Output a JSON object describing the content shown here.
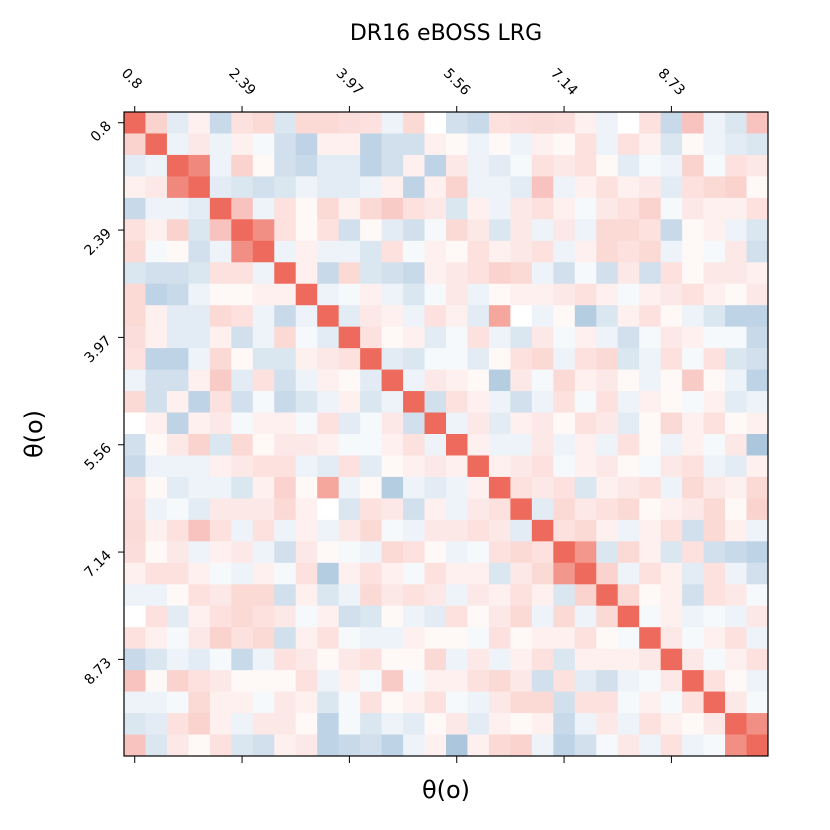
{
  "chart_data": {
    "type": "heatmap",
    "title": "DR16 eBOSS LRG",
    "xlabel": "θ(o)",
    "ylabel": "θ(o)",
    "tick_values": [
      0.8,
      2.39,
      3.97,
      5.56,
      7.14,
      8.73
    ],
    "tick_labels": [
      "0.8",
      "2.39",
      "3.97",
      "5.56",
      "7.14",
      "8.73"
    ],
    "n_bins": 30,
    "tick_bin_indices": [
      0,
      5,
      10,
      15,
      20,
      25
    ],
    "value_range": [
      -1,
      1
    ],
    "colormap": {
      "negative": "#4682b4",
      "zero": "#ffffff",
      "positive": "#ee6a5c"
    },
    "matrix_note": "symmetric correlation matrix with unit diagonal",
    "matrix": [
      [
        1.0,
        0.3,
        -0.15,
        0.1,
        -0.3,
        0.2,
        0.25,
        -0.2,
        0.25,
        0.25,
        0.22,
        0.2,
        -0.1,
        0.25,
        0.0,
        -0.25,
        -0.3,
        0.2,
        0.22,
        0.24,
        0.22,
        0.1,
        -0.1,
        0.0,
        0.2,
        -0.3,
        0.4,
        -0.1,
        -0.2,
        0.4
      ],
      [
        0.3,
        1.0,
        -0.1,
        0.15,
        -0.1,
        0.1,
        -0.05,
        -0.25,
        -0.35,
        0.1,
        0.1,
        -0.35,
        -0.25,
        -0.25,
        0.1,
        0.05,
        -0.1,
        0.05,
        -0.1,
        0.1,
        0.05,
        0.2,
        -0.1,
        0.2,
        0.1,
        -0.2,
        0.05,
        -0.1,
        -0.15,
        -0.2
      ],
      [
        -0.15,
        -0.1,
        1.0,
        0.8,
        -0.1,
        0.3,
        0.05,
        -0.25,
        -0.3,
        -0.15,
        -0.15,
        -0.35,
        -0.25,
        0.1,
        -0.35,
        0.15,
        -0.1,
        -0.15,
        -0.05,
        0.2,
        0.15,
        0.2,
        0.05,
        -0.15,
        -0.05,
        -0.1,
        0.3,
        -0.05,
        0.2,
        0.15
      ],
      [
        0.1,
        0.15,
        0.8,
        1.0,
        -0.15,
        -0.2,
        -0.25,
        -0.2,
        -0.1,
        -0.15,
        -0.15,
        -0.1,
        0.1,
        -0.35,
        0.1,
        0.3,
        -0.1,
        -0.1,
        -0.15,
        0.4,
        -0.1,
        0.1,
        0.2,
        0.1,
        0.15,
        -0.15,
        0.2,
        0.25,
        0.3,
        0.05
      ],
      [
        -0.3,
        -0.1,
        -0.1,
        -0.15,
        1.0,
        0.4,
        -0.1,
        0.2,
        0.05,
        0.25,
        0.1,
        0.25,
        0.35,
        0.2,
        0.15,
        -0.2,
        0.1,
        -0.1,
        0.15,
        0.2,
        0.1,
        -0.05,
        0.15,
        0.2,
        0.3,
        -0.05,
        0.15,
        0.1,
        0.1,
        0.2
      ],
      [
        0.2,
        0.1,
        0.3,
        -0.2,
        0.4,
        1.0,
        0.75,
        0.2,
        0.05,
        0.2,
        -0.25,
        0.05,
        -0.15,
        -0.25,
        -0.05,
        0.25,
        0.15,
        -0.2,
        0.15,
        -0.1,
        0.15,
        -0.1,
        0.25,
        0.25,
        0.2,
        -0.3,
        0.05,
        0.1,
        -0.1,
        -0.2
      ],
      [
        0.25,
        -0.05,
        0.05,
        -0.25,
        -0.1,
        0.75,
        1.0,
        -0.1,
        0.1,
        -0.1,
        -0.1,
        -0.2,
        0.2,
        -0.05,
        0.1,
        0.05,
        0.2,
        0.1,
        0.15,
        0.2,
        -0.1,
        0.1,
        0.25,
        0.2,
        0.25,
        -0.1,
        0.05,
        -0.05,
        0.15,
        -0.25
      ],
      [
        -0.2,
        -0.25,
        -0.25,
        -0.2,
        0.2,
        0.2,
        -0.1,
        1.0,
        0.1,
        -0.3,
        0.25,
        -0.2,
        -0.25,
        -0.3,
        0.1,
        0.15,
        0.2,
        0.3,
        0.25,
        -0.1,
        -0.25,
        -0.05,
        -0.25,
        0.15,
        -0.25,
        0.2,
        0.05,
        0.15,
        0.15,
        0.1
      ],
      [
        0.25,
        -0.35,
        -0.3,
        -0.1,
        0.05,
        0.05,
        0.1,
        0.1,
        1.0,
        -0.1,
        -0.05,
        0.1,
        -0.1,
        -0.2,
        -0.05,
        0.15,
        -0.1,
        0.05,
        0.1,
        0.1,
        0.15,
        0.2,
        0.1,
        -0.05,
        0.1,
        0.15,
        0.2,
        0.1,
        0.05,
        0.15
      ],
      [
        0.25,
        0.1,
        -0.15,
        -0.15,
        0.25,
        0.2,
        -0.1,
        -0.3,
        -0.1,
        1.0,
        -0.15,
        0.15,
        0.1,
        -0.1,
        0.2,
        0.1,
        -0.15,
        0.6,
        0.0,
        -0.1,
        0.05,
        -0.4,
        -0.2,
        0.1,
        0.2,
        0.05,
        -0.1,
        -0.2,
        -0.35,
        -0.35
      ],
      [
        0.22,
        0.1,
        -0.15,
        -0.15,
        0.1,
        -0.25,
        -0.1,
        0.25,
        -0.05,
        -0.15,
        1.0,
        0.2,
        0.05,
        0.1,
        -0.15,
        -0.05,
        0.2,
        -0.1,
        -0.2,
        0.15,
        -0.05,
        0.1,
        -0.1,
        -0.25,
        -0.05,
        0.15,
        0.1,
        -0.05,
        -0.05,
        -0.3
      ],
      [
        0.2,
        -0.35,
        -0.35,
        -0.1,
        0.25,
        0.05,
        -0.2,
        -0.2,
        0.1,
        0.15,
        0.2,
        1.0,
        -0.15,
        -0.2,
        -0.05,
        -0.05,
        -0.15,
        0.05,
        0.2,
        0.25,
        -0.1,
        0.2,
        0.25,
        -0.2,
        -0.1,
        0.2,
        -0.05,
        0.2,
        -0.2,
        -0.25
      ],
      [
        -0.1,
        -0.25,
        -0.25,
        0.1,
        0.35,
        -0.15,
        0.2,
        -0.25,
        -0.1,
        0.1,
        0.05,
        -0.15,
        1.0,
        -0.1,
        0.15,
        0.1,
        0.05,
        -0.4,
        0.15,
        -0.05,
        0.25,
        0.1,
        0.15,
        0.05,
        -0.1,
        0.05,
        0.35,
        0.05,
        -0.1,
        -0.35
      ],
      [
        0.25,
        -0.25,
        0.1,
        -0.35,
        0.2,
        -0.25,
        -0.05,
        -0.3,
        -0.2,
        -0.1,
        0.1,
        -0.2,
        -0.1,
        1.0,
        -0.25,
        0.2,
        0.1,
        -0.1,
        -0.25,
        -0.1,
        0.2,
        -0.05,
        0.2,
        -0.1,
        0.1,
        0.05,
        -0.05,
        0.1,
        -0.15,
        -0.1
      ],
      [
        0.0,
        0.1,
        -0.35,
        0.1,
        0.15,
        -0.05,
        0.1,
        0.1,
        -0.05,
        0.2,
        -0.15,
        -0.05,
        0.15,
        -0.25,
        1.0,
        -0.1,
        0.15,
        -0.15,
        0.1,
        0.15,
        0.05,
        0.2,
        0.15,
        -0.15,
        0.05,
        0.25,
        0.1,
        0.2,
        0.05,
        0.1
      ],
      [
        -0.25,
        0.05,
        0.15,
        0.3,
        -0.2,
        0.25,
        0.05,
        0.15,
        0.15,
        0.1,
        -0.05,
        -0.05,
        0.1,
        0.2,
        -0.1,
        1.0,
        0.1,
        -0.1,
        -0.1,
        0.15,
        -0.1,
        0.1,
        -0.1,
        0.2,
        0.05,
        -0.1,
        0.1,
        -0.05,
        0.15,
        -0.45
      ],
      [
        -0.3,
        -0.1,
        -0.1,
        -0.1,
        0.1,
        0.15,
        0.2,
        0.2,
        -0.1,
        -0.15,
        0.2,
        -0.15,
        0.05,
        0.1,
        0.15,
        0.1,
        1.0,
        0.1,
        0.15,
        0.2,
        -0.05,
        0.1,
        0.15,
        0.05,
        -0.05,
        0.15,
        0.2,
        -0.1,
        -0.15,
        0.1
      ],
      [
        0.2,
        0.05,
        -0.15,
        -0.1,
        -0.1,
        -0.2,
        0.1,
        0.3,
        0.05,
        0.6,
        -0.1,
        0.05,
        -0.4,
        -0.1,
        -0.15,
        -0.1,
        0.1,
        1.0,
        0.2,
        0.15,
        0.2,
        -0.2,
        0.1,
        0.15,
        0.2,
        -0.1,
        0.25,
        0.15,
        0.1,
        0.25
      ],
      [
        0.22,
        -0.1,
        -0.05,
        -0.15,
        0.15,
        0.15,
        0.15,
        0.25,
        0.1,
        0.0,
        -0.2,
        0.2,
        0.15,
        -0.25,
        0.1,
        -0.1,
        0.15,
        0.2,
        1.0,
        -0.15,
        0.25,
        0.15,
        0.2,
        0.25,
        0.05,
        0.1,
        0.15,
        0.25,
        0.05,
        0.3
      ],
      [
        0.24,
        0.1,
        0.2,
        0.4,
        0.2,
        -0.1,
        0.2,
        -0.1,
        0.1,
        -0.1,
        0.15,
        0.25,
        -0.05,
        -0.1,
        0.15,
        0.15,
        0.2,
        0.15,
        -0.15,
        1.0,
        0.2,
        0.25,
        0.1,
        -0.1,
        0.1,
        0.2,
        -0.25,
        0.25,
        0.1,
        -0.1
      ],
      [
        0.22,
        0.05,
        0.15,
        -0.1,
        0.1,
        0.15,
        -0.1,
        -0.25,
        0.15,
        0.05,
        -0.05,
        -0.1,
        0.25,
        0.2,
        0.05,
        -0.1,
        -0.05,
        0.2,
        0.25,
        0.2,
        1.0,
        0.7,
        -0.2,
        0.25,
        0.1,
        -0.2,
        0.2,
        -0.25,
        -0.3,
        -0.35
      ],
      [
        0.1,
        0.2,
        0.2,
        0.1,
        -0.05,
        -0.1,
        0.1,
        -0.05,
        0.2,
        -0.4,
        0.1,
        0.2,
        0.1,
        -0.05,
        0.2,
        0.1,
        0.1,
        -0.2,
        0.15,
        0.25,
        0.7,
        1.0,
        0.3,
        -0.1,
        0.2,
        0.1,
        -0.15,
        0.2,
        -0.1,
        -0.25
      ],
      [
        -0.1,
        -0.1,
        0.05,
        0.2,
        0.15,
        0.25,
        0.25,
        -0.25,
        0.1,
        -0.2,
        -0.1,
        0.25,
        0.15,
        0.2,
        0.15,
        -0.1,
        0.15,
        0.1,
        0.2,
        0.1,
        -0.2,
        0.3,
        1.0,
        0.25,
        0.05,
        0.1,
        -0.25,
        0.2,
        0.15,
        -0.05
      ],
      [
        0.0,
        0.2,
        -0.15,
        0.1,
        0.2,
        0.25,
        0.2,
        0.15,
        -0.05,
        0.1,
        -0.25,
        -0.2,
        0.05,
        -0.1,
        -0.15,
        0.2,
        0.05,
        0.15,
        0.25,
        -0.1,
        0.25,
        -0.1,
        0.25,
        1.0,
        -0.05,
        0.1,
        -0.1,
        -0.05,
        -0.1,
        0.15
      ],
      [
        0.2,
        0.1,
        -0.05,
        0.15,
        0.3,
        0.2,
        0.25,
        -0.25,
        0.1,
        0.2,
        -0.05,
        -0.1,
        -0.1,
        0.1,
        0.05,
        0.05,
        -0.05,
        0.2,
        0.05,
        0.1,
        0.1,
        0.2,
        0.05,
        -0.05,
        1.0,
        0.15,
        -0.05,
        0.1,
        0.2,
        -0.1
      ],
      [
        -0.3,
        -0.2,
        -0.1,
        -0.15,
        -0.05,
        -0.3,
        -0.1,
        0.2,
        0.15,
        0.05,
        0.15,
        0.2,
        0.05,
        0.05,
        0.25,
        -0.1,
        0.15,
        -0.1,
        0.1,
        0.2,
        -0.2,
        0.1,
        0.1,
        0.1,
        0.15,
        1.0,
        0.15,
        -0.05,
        0.1,
        0.2
      ],
      [
        0.4,
        0.05,
        0.3,
        0.2,
        0.15,
        0.05,
        0.05,
        0.05,
        0.2,
        -0.1,
        0.1,
        -0.05,
        0.35,
        -0.05,
        0.1,
        0.1,
        0.2,
        0.25,
        0.15,
        -0.25,
        0.2,
        -0.15,
        -0.25,
        -0.1,
        -0.05,
        0.15,
        1.0,
        0.2,
        0.05,
        -0.1
      ],
      [
        -0.1,
        -0.1,
        -0.05,
        0.25,
        0.1,
        0.1,
        -0.05,
        0.15,
        0.1,
        -0.2,
        -0.05,
        0.2,
        0.05,
        0.1,
        0.2,
        -0.05,
        -0.1,
        0.15,
        0.25,
        0.25,
        -0.25,
        0.2,
        0.2,
        -0.05,
        0.1,
        -0.05,
        0.2,
        1.0,
        0.15,
        -0.05
      ],
      [
        -0.2,
        -0.15,
        0.2,
        0.3,
        0.1,
        -0.1,
        0.15,
        0.15,
        0.05,
        -0.35,
        -0.05,
        -0.2,
        -0.1,
        -0.15,
        0.05,
        0.15,
        -0.15,
        0.1,
        0.05,
        0.1,
        -0.3,
        -0.1,
        0.15,
        -0.1,
        0.2,
        0.1,
        0.05,
        0.15,
        1.0,
        0.75
      ],
      [
        0.4,
        -0.2,
        0.15,
        0.05,
        0.2,
        -0.2,
        -0.25,
        0.1,
        0.15,
        -0.35,
        -0.3,
        -0.25,
        -0.35,
        -0.1,
        0.1,
        -0.45,
        0.1,
        0.25,
        0.3,
        -0.1,
        -0.35,
        -0.25,
        -0.05,
        0.15,
        -0.1,
        0.2,
        -0.1,
        -0.05,
        0.75,
        1.0
      ]
    ]
  }
}
